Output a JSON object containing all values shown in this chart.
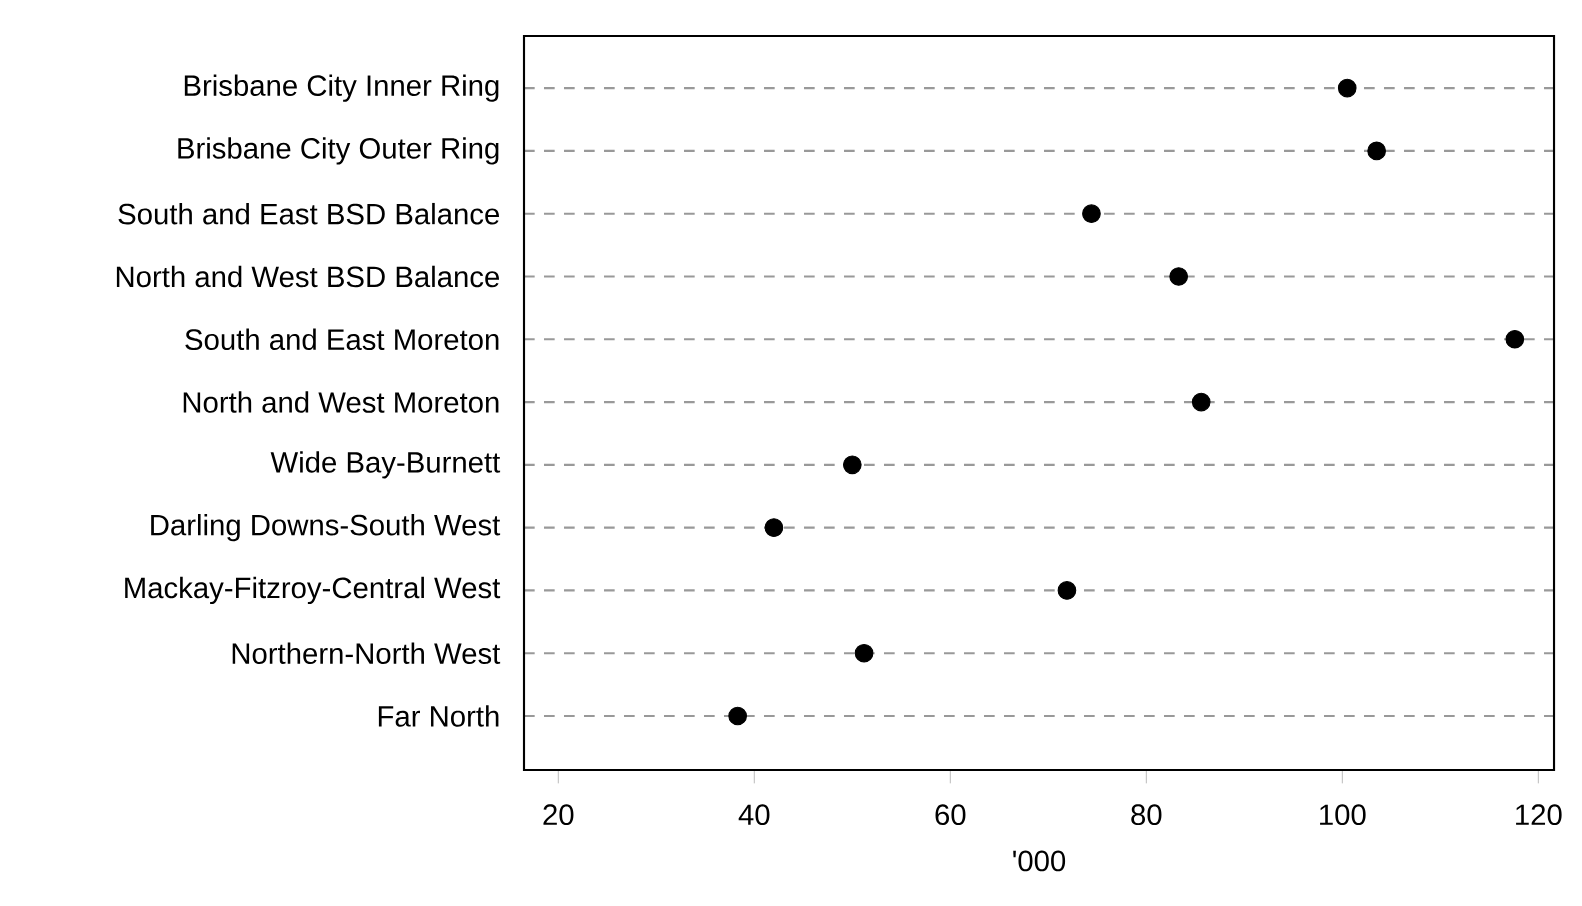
{
  "chart_data": {
    "type": "scatter",
    "orientation": "horizontal",
    "categories": [
      "Brisbane City Inner Ring",
      "Brisbane City Outer Ring",
      "South and East BSD Balance",
      "North and West BSD Balance",
      "South and East Moreton",
      "North and West Moreton",
      "Wide Bay-Burnett",
      "Darling Downs-South West",
      "Mackay-Fitzroy-Central West",
      "Northern-North West",
      "Far North"
    ],
    "values": [
      100.5,
      103.5,
      74.4,
      83.3,
      117.6,
      85.6,
      50.0,
      42.0,
      71.9,
      51.2,
      38.3
    ],
    "color": "#000000",
    "marker": "circle",
    "xlabel": "'000",
    "xlim": [
      16.5,
      121.6
    ],
    "xticks": [
      20,
      40,
      60,
      80,
      100,
      120
    ],
    "grid": "y",
    "line_style": "dashed"
  }
}
